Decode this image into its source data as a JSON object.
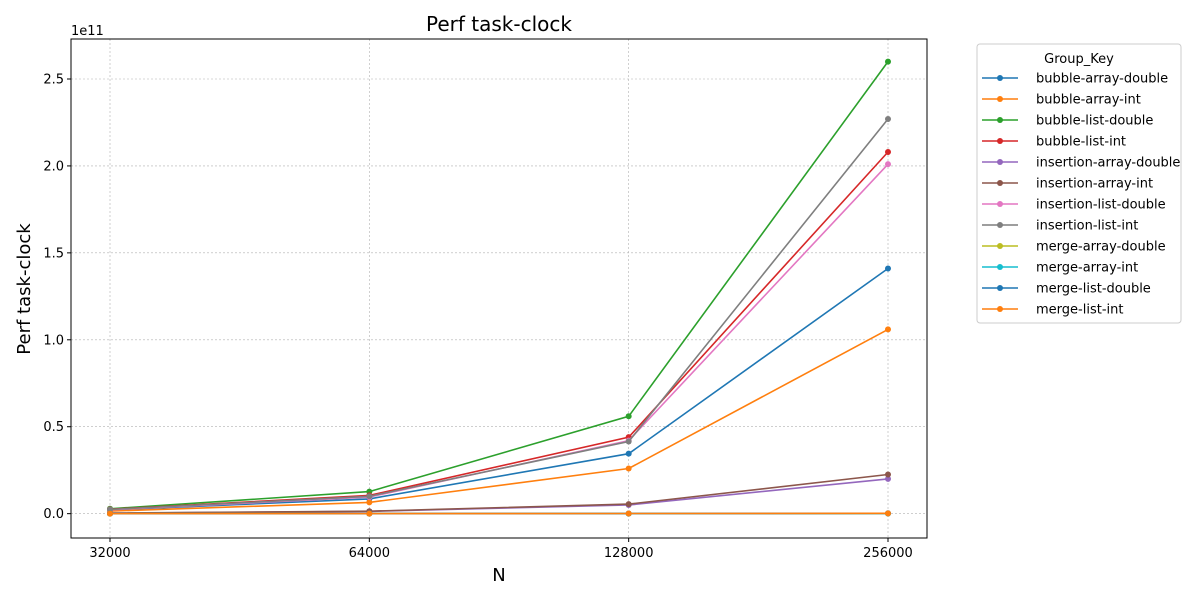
{
  "chart_data": {
    "type": "line",
    "title": "Perf task-clock",
    "xlabel": "N",
    "ylabel": "Perf task-clock",
    "y_multiplier": "1e11",
    "x": [
      "32000",
      "64000",
      "128000",
      "256000"
    ],
    "x_values": [
      32000,
      64000,
      128000,
      256000
    ],
    "x_scale": "log",
    "ylim": [
      -0.14,
      2.73
    ],
    "y_ticks": [
      0.0,
      0.5,
      1.0,
      1.5,
      2.0,
      2.5
    ],
    "y_tick_labels": [
      "0.0",
      "0.5",
      "1.0",
      "1.5",
      "2.0",
      "2.5"
    ],
    "grid": true,
    "legend_title": "Group_Key",
    "legend_position": "outside-right",
    "series": [
      {
        "name": "bubble-array-double",
        "color": "#1f77b4",
        "values": [
          0.021,
          0.085,
          0.345,
          1.41
        ]
      },
      {
        "name": "bubble-array-int",
        "color": "#ff7f0e",
        "values": [
          0.015,
          0.065,
          0.26,
          1.06
        ]
      },
      {
        "name": "bubble-list-double",
        "color": "#2ca02c",
        "values": [
          0.028,
          0.127,
          0.56,
          2.6
        ]
      },
      {
        "name": "bubble-list-int",
        "color": "#d62728",
        "values": [
          0.025,
          0.105,
          0.44,
          2.08
        ]
      },
      {
        "name": "insertion-array-double",
        "color": "#9467bd",
        "values": [
          0.003,
          0.013,
          0.05,
          0.2
        ]
      },
      {
        "name": "insertion-array-int",
        "color": "#8c564b",
        "values": [
          0.003,
          0.014,
          0.055,
          0.225
        ]
      },
      {
        "name": "insertion-list-double",
        "color": "#e377c2",
        "values": [
          0.022,
          0.095,
          0.42,
          2.01
        ]
      },
      {
        "name": "insertion-list-int",
        "color": "#7f7f7f",
        "values": [
          0.024,
          0.1,
          0.415,
          2.27
        ]
      },
      {
        "name": "merge-array-double",
        "color": "#bcbd22",
        "values": [
          0.0001,
          0.0002,
          0.0004,
          0.0008
        ]
      },
      {
        "name": "merge-array-int",
        "color": "#17becf",
        "values": [
          0.0001,
          0.0002,
          0.0004,
          0.0008
        ]
      },
      {
        "name": "merge-list-double",
        "color": "#1f77b4",
        "values": [
          0.0002,
          0.0004,
          0.0009,
          0.002
        ]
      },
      {
        "name": "merge-list-int",
        "color": "#ff7f0e",
        "values": [
          0.0002,
          0.0004,
          0.0008,
          0.0018
        ]
      }
    ]
  }
}
